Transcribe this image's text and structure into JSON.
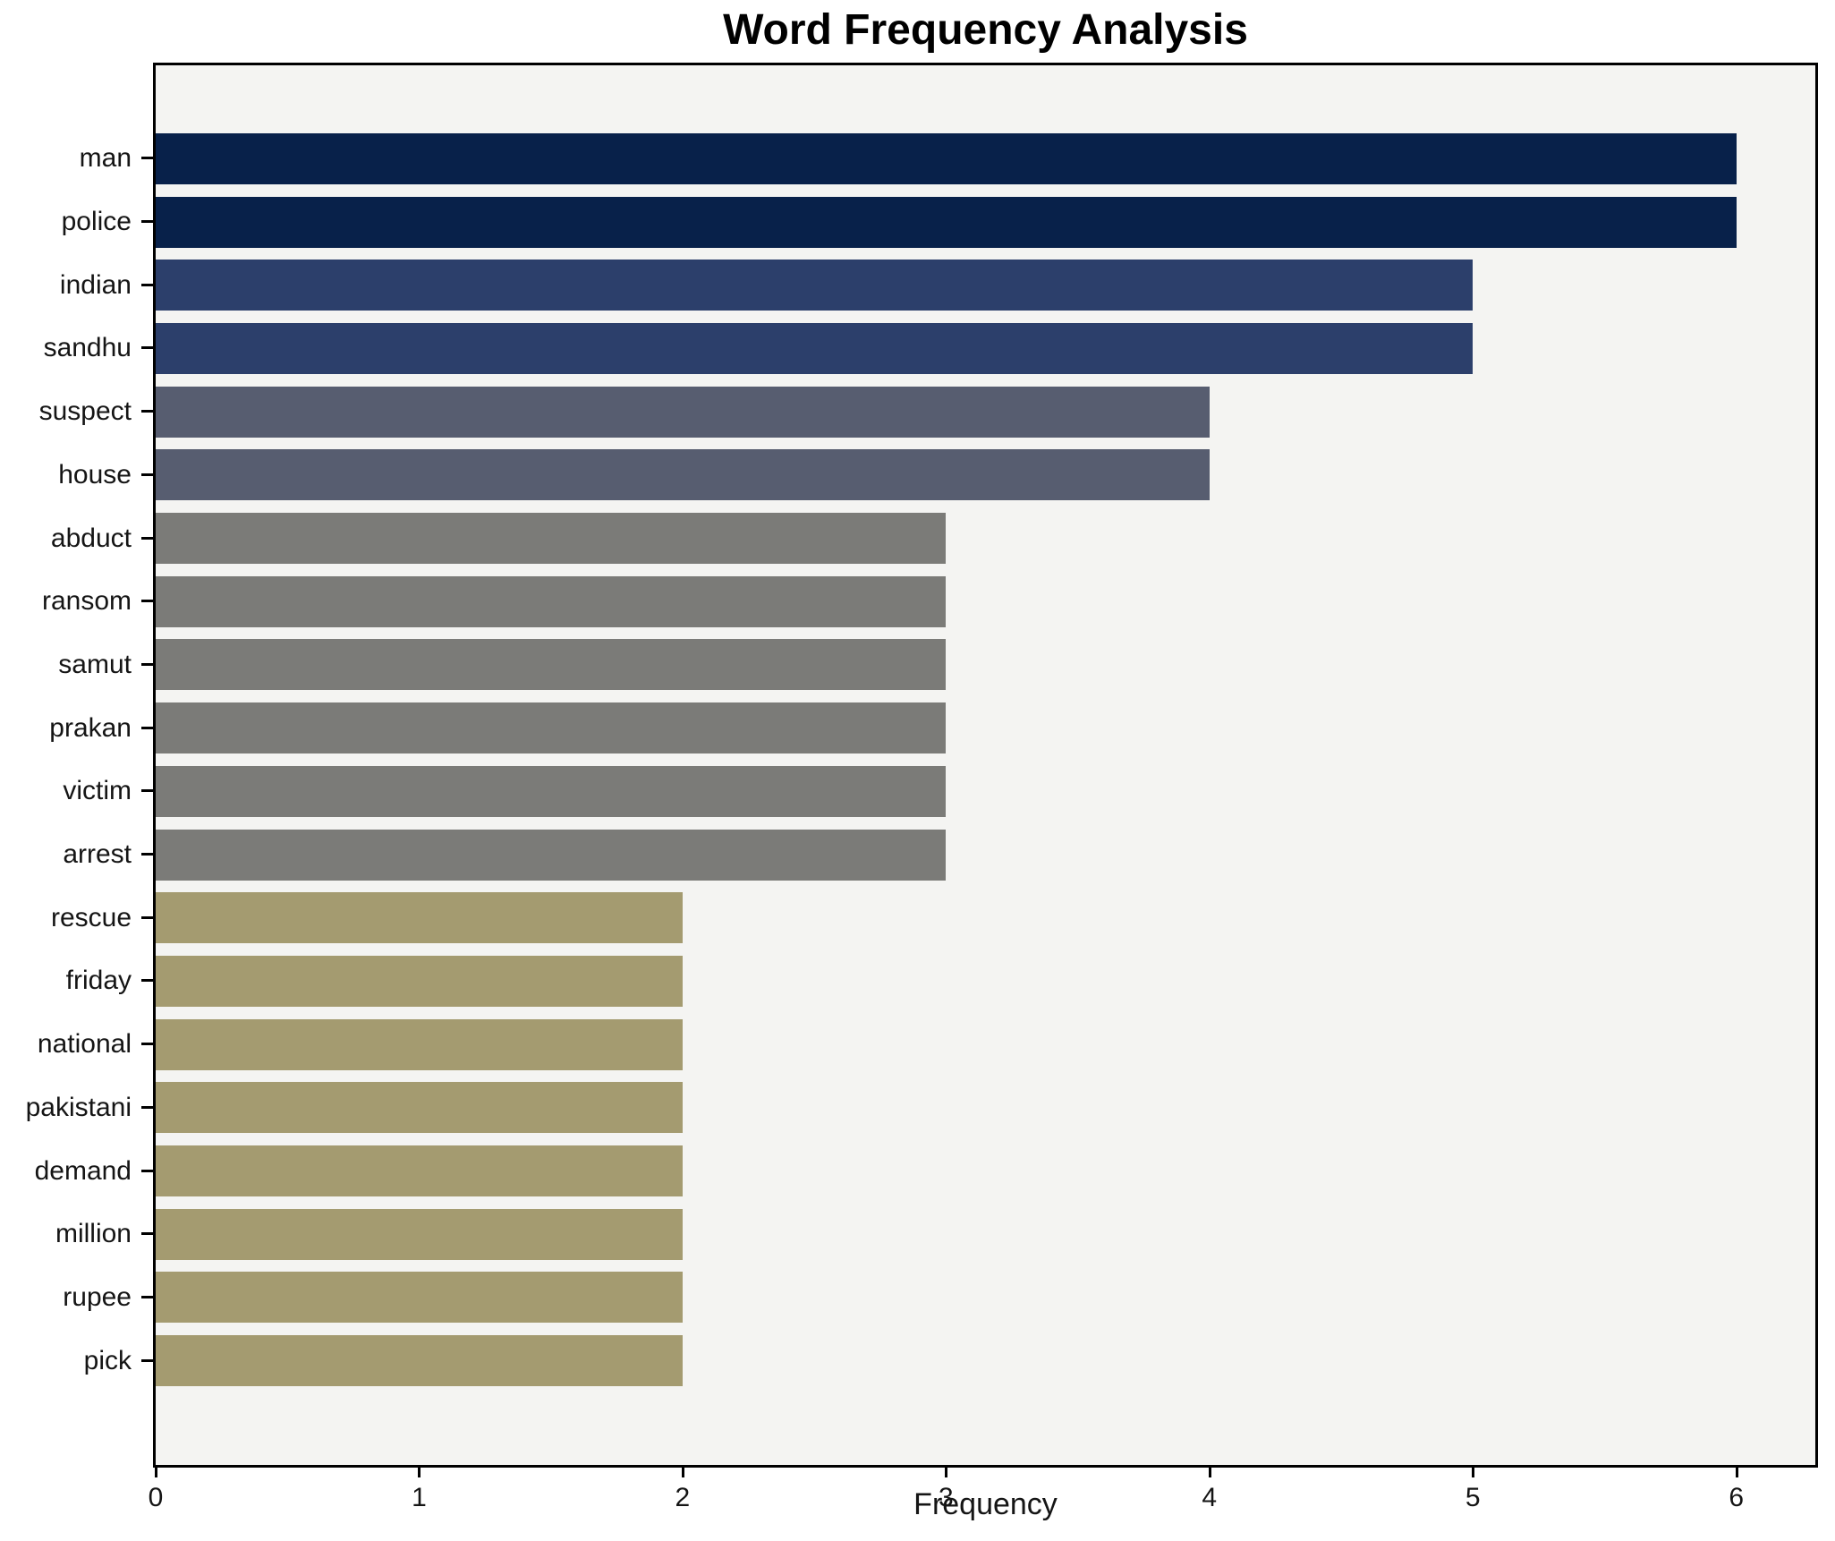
{
  "chart_data": {
    "type": "bar",
    "orientation": "horizontal",
    "title": "Word Frequency Analysis",
    "xlabel": "Frequency",
    "ylabel": "",
    "categories": [
      "man",
      "police",
      "indian",
      "sandhu",
      "suspect",
      "house",
      "abduct",
      "ransom",
      "samut",
      "prakan",
      "victim",
      "arrest",
      "rescue",
      "friday",
      "national",
      "pakistani",
      "demand",
      "million",
      "rupee",
      "pick"
    ],
    "values": [
      6,
      6,
      5,
      5,
      4,
      4,
      3,
      3,
      3,
      3,
      3,
      3,
      2,
      2,
      2,
      2,
      2,
      2,
      2,
      2
    ],
    "xticks": [
      0,
      1,
      2,
      3,
      4,
      5,
      6
    ],
    "xlim": [
      0,
      6.3
    ],
    "grid": false,
    "legend": null,
    "palette_by_value": {
      "6": "#08214a",
      "5": "#2c3f6b",
      "4": "#575d70",
      "3": "#7b7b78",
      "2": "#a49b70"
    },
    "plot_background": "#f4f4f2",
    "figure_background": "#ffffff",
    "axis_color": "#000000"
  }
}
